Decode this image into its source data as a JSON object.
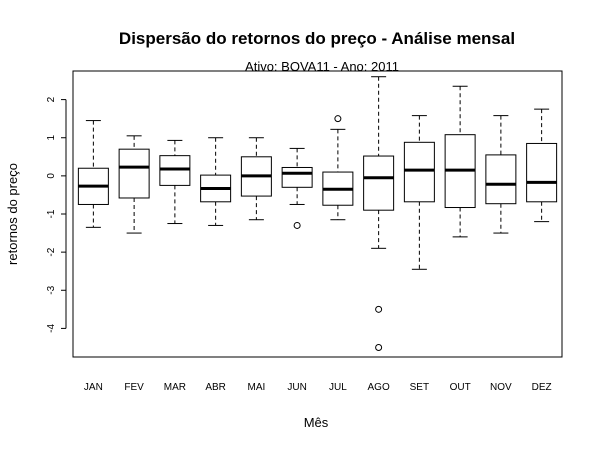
{
  "chart_data": {
    "type": "boxplot",
    "title": "Dispersão do  retornos do preço  - Análise mensal",
    "subtitle": "Ativo: BOVA11 - Ano: 2011",
    "xlabel": "Mês",
    "ylabel": "retornos do preço",
    "ylim": [
      -4.75,
      2.75
    ],
    "yticks": [
      -4,
      -3,
      -2,
      -1,
      0,
      1,
      2
    ],
    "ytick_labels": [
      "-4",
      "-3",
      "-2",
      "-1",
      "0",
      "1",
      "2"
    ],
    "categories": [
      "JAN",
      "FEV",
      "MAR",
      "ABR",
      "MAI",
      "JUN",
      "JUL",
      "AGO",
      "SET",
      "OUT",
      "NOV",
      "DEZ"
    ],
    "boxes": [
      {
        "min": -1.35,
        "q1": -0.75,
        "median": -0.27,
        "q3": 0.2,
        "max": 1.45,
        "outliers": []
      },
      {
        "min": -1.5,
        "q1": -0.58,
        "median": 0.23,
        "q3": 0.7,
        "max": 1.05,
        "outliers": []
      },
      {
        "min": -1.25,
        "q1": -0.25,
        "median": 0.18,
        "q3": 0.53,
        "max": 0.93,
        "outliers": []
      },
      {
        "min": -1.3,
        "q1": -0.68,
        "median": -0.33,
        "q3": 0.02,
        "max": 1.0,
        "outliers": []
      },
      {
        "min": -1.15,
        "q1": -0.53,
        "median": 0.0,
        "q3": 0.5,
        "max": 1.0,
        "outliers": []
      },
      {
        "min": -0.75,
        "q1": -0.3,
        "median": 0.07,
        "q3": 0.22,
        "max": 0.72,
        "outliers": [
          -1.3
        ]
      },
      {
        "min": -1.15,
        "q1": -0.77,
        "median": -0.35,
        "q3": 0.1,
        "max": 1.22,
        "outliers": [
          1.5
        ]
      },
      {
        "min": -1.9,
        "q1": -0.9,
        "median": -0.05,
        "q3": 0.52,
        "max": 2.6,
        "outliers": [
          -3.5,
          -4.5
        ]
      },
      {
        "min": -2.45,
        "q1": -0.68,
        "median": 0.15,
        "q3": 0.88,
        "max": 1.58,
        "outliers": []
      },
      {
        "min": -1.6,
        "q1": -0.83,
        "median": 0.15,
        "q3": 1.08,
        "max": 2.35,
        "outliers": []
      },
      {
        "min": -1.5,
        "q1": -0.73,
        "median": -0.22,
        "q3": 0.55,
        "max": 1.58,
        "outliers": []
      },
      {
        "min": -1.2,
        "q1": -0.68,
        "median": -0.17,
        "q3": 0.85,
        "max": 1.75,
        "outliers": []
      }
    ]
  }
}
